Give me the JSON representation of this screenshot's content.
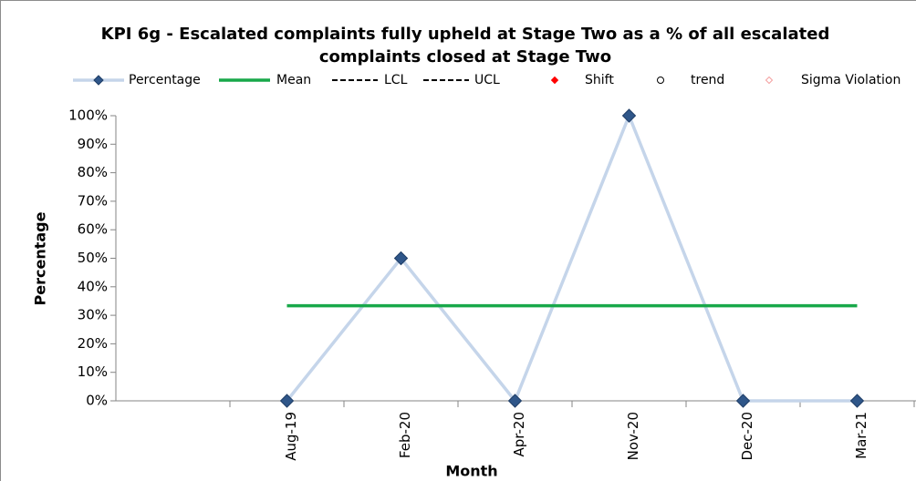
{
  "chart_data": {
    "type": "line",
    "title": [
      "KPI 6g - Escalated complaints fully upheld at Stage Two as a % of all escalated",
      "complaints closed at Stage Two"
    ],
    "x_label": "Month",
    "y_label": "Percentage",
    "categories": [
      null,
      "Aug-19",
      "Feb-20",
      "Apr-20",
      "Nov-20",
      "Dec-20",
      "Mar-21"
    ],
    "series": [
      {
        "name": "Percentage",
        "color": "#c5d5ea",
        "marker_color": "#2f5689",
        "line": "solid",
        "marker": "diamond",
        "values": [
          null,
          0,
          50,
          0,
          100,
          0,
          0
        ]
      },
      {
        "name": "Mean",
        "color": "#18a84a",
        "line": "solid",
        "marker": "none",
        "values": [
          null,
          33.33,
          33.33,
          33.33,
          33.33,
          33.33,
          33.33
        ]
      },
      {
        "name": "LCL",
        "color": "#000000",
        "line": "dashed",
        "marker": "none",
        "values": [
          null,
          null,
          null,
          null,
          null,
          null,
          null
        ]
      },
      {
        "name": "UCL",
        "color": "#000000",
        "line": "dashed",
        "marker": "none",
        "values": [
          null,
          null,
          null,
          null,
          null,
          null,
          null
        ]
      },
      {
        "name": "Shift",
        "color": "#ff0000",
        "line": "none",
        "marker": "diamond",
        "values": [
          null,
          null,
          null,
          null,
          null,
          null,
          null
        ]
      },
      {
        "name": "trend",
        "color": "#000000",
        "line": "none",
        "marker": "circle",
        "values": [
          null,
          null,
          null,
          null,
          null,
          null,
          null
        ]
      },
      {
        "name": "Sigma Violation",
        "color": "#f4a0a0",
        "line": "none",
        "marker": "hollow-diamond",
        "values": [
          null,
          null,
          null,
          null,
          null,
          null,
          null
        ]
      }
    ],
    "ylim": [
      0,
      100
    ],
    "yticks": [
      {
        "value": 0,
        "label": "0%"
      },
      {
        "value": 10,
        "label": "10%"
      },
      {
        "value": 20,
        "label": "20%"
      },
      {
        "value": 30,
        "label": "30%"
      },
      {
        "value": 40,
        "label": "40%"
      },
      {
        "value": 50,
        "label": "50%"
      },
      {
        "value": 60,
        "label": "60%"
      },
      {
        "value": 70,
        "label": "70%"
      },
      {
        "value": 80,
        "label": "80%"
      },
      {
        "value": 90,
        "label": "90%"
      },
      {
        "value": 100,
        "label": "100%"
      }
    ],
    "grid": false,
    "legend": "top"
  }
}
